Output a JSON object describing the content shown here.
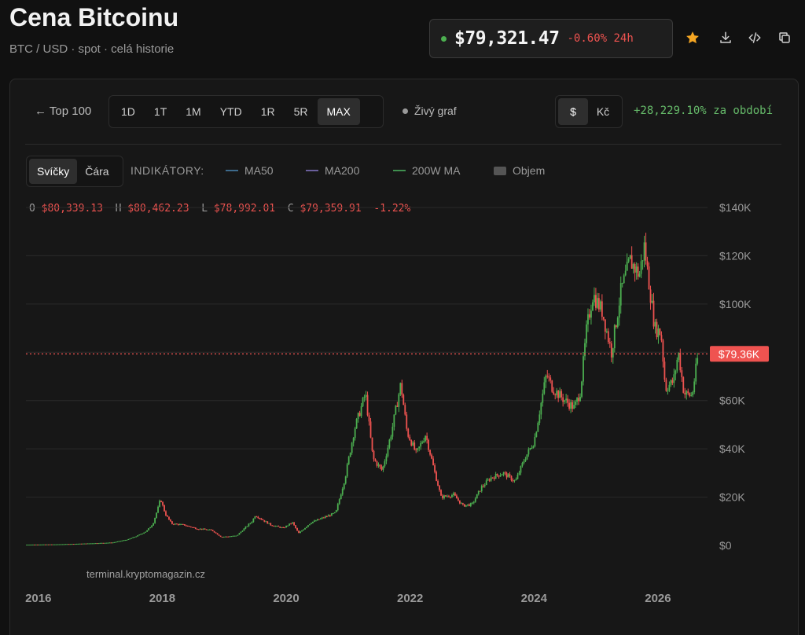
{
  "header": {
    "title": "Cena Bitcoinu",
    "subtitle": "BTC / USD · spot · celá historie",
    "price": "$79,321.47",
    "change_24h": "-0.60% 24h"
  },
  "toolbar": {
    "back_label": "← Top 100",
    "ranges": [
      "1D",
      "1T",
      "1M",
      "YTD",
      "1R",
      "5R",
      "MAX"
    ],
    "active_range": "MAX",
    "live_label": "Živý graf",
    "currencies": [
      "$",
      "Kč"
    ],
    "active_currency": "$",
    "period_change": "+28,229.10% za období"
  },
  "chart_controls": {
    "types": [
      "Svíčky",
      "Čára"
    ],
    "active_type": "Svíčky",
    "indicators_label": "INDIKÁTORY:",
    "indicators": [
      {
        "label": "MA50",
        "color": "#3d6a8c"
      },
      {
        "label": "MA200",
        "color": "#6a5f9c"
      },
      {
        "label": "200W MA",
        "color": "#3f8f4f"
      },
      {
        "label": "Objem",
        "color": "#555555"
      }
    ]
  },
  "ohlc": {
    "o_label": "O",
    "o": "$80,339.13",
    "h_label": "H",
    "h": "$80,462.23",
    "l_label": "L",
    "l": "$78,992.01",
    "c_label": "C",
    "c": "$79,359.91",
    "change": "-1.22%"
  },
  "watermark": "terminal.kryptomagazin.cz",
  "icons": [
    "star-icon",
    "download-icon",
    "code-icon",
    "copy-icon"
  ],
  "colors": {
    "up": "#4caf50",
    "down": "#ef5350",
    "accent_star": "#f5a623",
    "last_price_bg": "#ef5350"
  },
  "chart_data": {
    "type": "candlestick",
    "x_ticks": [
      "2016",
      "2018",
      "2020",
      "2022",
      "2024",
      "2026"
    ],
    "y_ticks": [
      "$0",
      "$20K",
      "$40K",
      "$60K",
      "$80K",
      "$100K",
      "$120K",
      "$140K"
    ],
    "ylim": [
      0,
      140000
    ],
    "xlim": [
      2015.8,
      2026.8
    ],
    "last_price": 79360,
    "last_price_label": "$79.36K",
    "series": [
      {
        "x": 2015.8,
        "y": 300
      },
      {
        "x": 2016.3,
        "y": 450
      },
      {
        "x": 2016.6,
        "y": 650
      },
      {
        "x": 2016.9,
        "y": 900
      },
      {
        "x": 2017.2,
        "y": 1200
      },
      {
        "x": 2017.45,
        "y": 2500
      },
      {
        "x": 2017.6,
        "y": 4000
      },
      {
        "x": 2017.75,
        "y": 6000
      },
      {
        "x": 2017.85,
        "y": 9000
      },
      {
        "x": 2017.95,
        "y": 17000
      },
      {
        "x": 2017.97,
        "y": 19500
      },
      {
        "x": 2018.05,
        "y": 13000
      },
      {
        "x": 2018.15,
        "y": 9000
      },
      {
        "x": 2018.35,
        "y": 8500
      },
      {
        "x": 2018.55,
        "y": 7000
      },
      {
        "x": 2018.8,
        "y": 6300
      },
      {
        "x": 2018.95,
        "y": 3500
      },
      {
        "x": 2019.2,
        "y": 4000
      },
      {
        "x": 2019.45,
        "y": 10000
      },
      {
        "x": 2019.5,
        "y": 12500
      },
      {
        "x": 2019.75,
        "y": 8500
      },
      {
        "x": 2019.95,
        "y": 7200
      },
      {
        "x": 2020.1,
        "y": 9500
      },
      {
        "x": 2020.2,
        "y": 5000
      },
      {
        "x": 2020.4,
        "y": 9500
      },
      {
        "x": 2020.6,
        "y": 11500
      },
      {
        "x": 2020.8,
        "y": 13500
      },
      {
        "x": 2020.95,
        "y": 28000
      },
      {
        "x": 2021.1,
        "y": 48000
      },
      {
        "x": 2021.28,
        "y": 63000
      },
      {
        "x": 2021.4,
        "y": 36000
      },
      {
        "x": 2021.55,
        "y": 31000
      },
      {
        "x": 2021.7,
        "y": 47000
      },
      {
        "x": 2021.85,
        "y": 67000
      },
      {
        "x": 2021.95,
        "y": 47000
      },
      {
        "x": 2022.1,
        "y": 38000
      },
      {
        "x": 2022.25,
        "y": 46000
      },
      {
        "x": 2022.4,
        "y": 30000
      },
      {
        "x": 2022.5,
        "y": 20000
      },
      {
        "x": 2022.7,
        "y": 21000
      },
      {
        "x": 2022.85,
        "y": 16500
      },
      {
        "x": 2023.0,
        "y": 17000
      },
      {
        "x": 2023.15,
        "y": 24000
      },
      {
        "x": 2023.3,
        "y": 28000
      },
      {
        "x": 2023.5,
        "y": 30000
      },
      {
        "x": 2023.7,
        "y": 26500
      },
      {
        "x": 2023.85,
        "y": 36000
      },
      {
        "x": 2024.0,
        "y": 43000
      },
      {
        "x": 2024.2,
        "y": 71000
      },
      {
        "x": 2024.3,
        "y": 65000
      },
      {
        "x": 2024.5,
        "y": 60000
      },
      {
        "x": 2024.65,
        "y": 57000
      },
      {
        "x": 2024.75,
        "y": 64000
      },
      {
        "x": 2024.85,
        "y": 90000
      },
      {
        "x": 2024.95,
        "y": 104000
      },
      {
        "x": 2025.1,
        "y": 97000
      },
      {
        "x": 2025.25,
        "y": 80000
      },
      {
        "x": 2025.4,
        "y": 105000
      },
      {
        "x": 2025.55,
        "y": 118000
      },
      {
        "x": 2025.7,
        "y": 112000
      },
      {
        "x": 2025.78,
        "y": 124000
      },
      {
        "x": 2025.85,
        "y": 110000
      },
      {
        "x": 2025.95,
        "y": 90000
      },
      {
        "x": 2026.05,
        "y": 88000
      },
      {
        "x": 2026.12,
        "y": 65000
      },
      {
        "x": 2026.25,
        "y": 68000
      },
      {
        "x": 2026.33,
        "y": 80000
      },
      {
        "x": 2026.42,
        "y": 63000
      },
      {
        "x": 2026.55,
        "y": 62000
      },
      {
        "x": 2026.65,
        "y": 79360
      }
    ]
  }
}
